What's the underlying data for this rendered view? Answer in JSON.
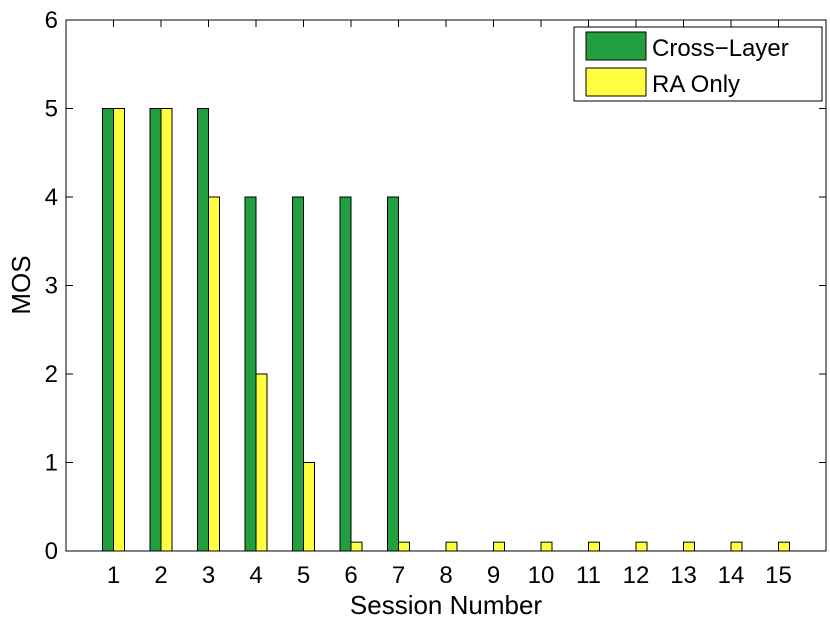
{
  "chart_data": {
    "type": "bar",
    "title": "",
    "xlabel": "Session Number",
    "ylabel": "MOS",
    "ylim": [
      0,
      6
    ],
    "yticks": [
      "0",
      "1",
      "2",
      "3",
      "4",
      "5",
      "6"
    ],
    "categories": [
      "1",
      "2",
      "3",
      "4",
      "5",
      "6",
      "7",
      "8",
      "9",
      "10",
      "11",
      "12",
      "13",
      "14",
      "15"
    ],
    "series": [
      {
        "name": "Cross−Layer",
        "color": "#22a040",
        "values": [
          5,
          5,
          5,
          4,
          4,
          4,
          4,
          0,
          0,
          0,
          0,
          0,
          0,
          0,
          0
        ]
      },
      {
        "name": "RA Only",
        "color": "#ffff40",
        "values": [
          5,
          5,
          4,
          2,
          1,
          0.1,
          0.1,
          0.1,
          0.1,
          0.1,
          0.1,
          0.1,
          0.1,
          0.1,
          0.1
        ]
      }
    ],
    "legend": "top-right",
    "grid": false
  }
}
